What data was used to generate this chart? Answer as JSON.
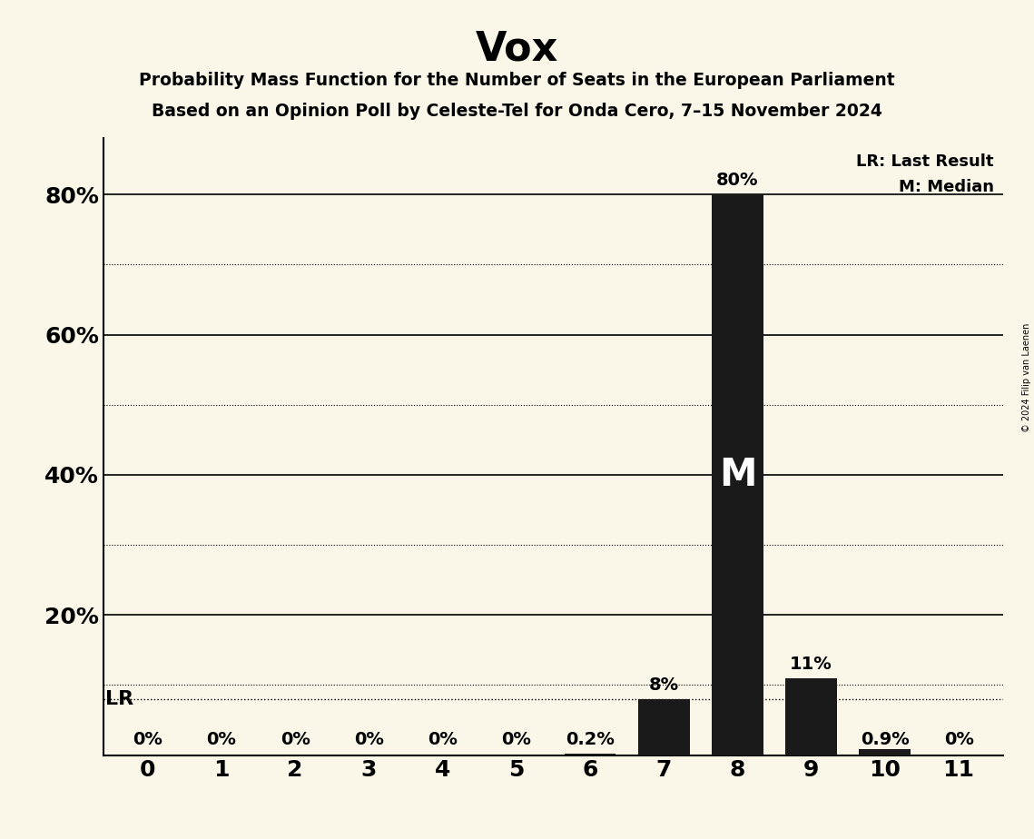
{
  "title": "Vox",
  "subtitle1": "Probability Mass Function for the Number of Seats in the European Parliament",
  "subtitle2": "Based on an Opinion Poll by Celeste-Tel for Onda Cero, 7–15 November 2024",
  "copyright": "© 2024 Filip van Laenen",
  "categories": [
    0,
    1,
    2,
    3,
    4,
    5,
    6,
    7,
    8,
    9,
    10,
    11
  ],
  "values": [
    0.0,
    0.0,
    0.0,
    0.0,
    0.0,
    0.0,
    0.2,
    8.0,
    80.0,
    11.0,
    0.9,
    0.0
  ],
  "bar_color": "#1a1a1a",
  "background_color": "#faf6e8",
  "bar_labels": [
    "0%",
    "0%",
    "0%",
    "0%",
    "0%",
    "0%",
    "0.2%",
    "8%",
    "80%",
    "11%",
    "0.9%",
    "0%"
  ],
  "lr_value": 8.0,
  "lr_label": "LR",
  "median_seat": 8,
  "median_label": "M",
  "legend_lr": "LR: Last Result",
  "legend_m": "M: Median",
  "ylim": [
    0,
    88
  ],
  "yticks": [
    20,
    40,
    60,
    80
  ],
  "ytick_labels": [
    "20%",
    "40%",
    "60%",
    "80%"
  ],
  "dotted_lines": [
    10,
    30,
    50,
    70
  ],
  "solid_lines": [
    20,
    40,
    60,
    80
  ]
}
